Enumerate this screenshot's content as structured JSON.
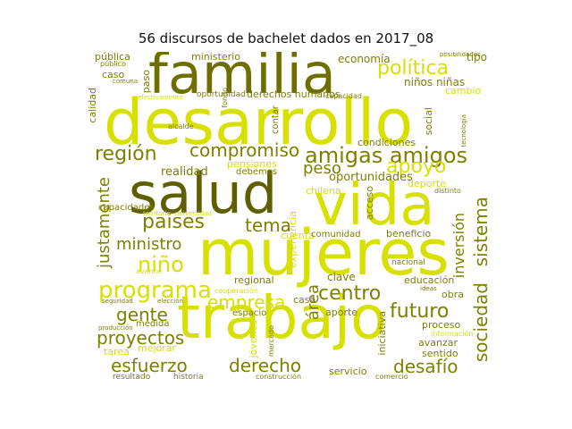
{
  "title": "56 discursos de bachelet dados en 2017_08",
  "palette": {
    "olive": "#7f7f00",
    "yellow": "#d8e000",
    "dark": "#5f5f00"
  },
  "words": {
    "familia": "familia",
    "desarrollo": "desarrollo",
    "salud": "salud",
    "vida": "vida",
    "mujeres": "mujeres",
    "trabajo": "trabajo",
    "politica": "política",
    "region": "región",
    "compromiso": "compromiso",
    "amigas_amigos": "amigas amigos",
    "apoyo": "apoyo",
    "paises": "países",
    "tema": "tema",
    "ministro": "ministro",
    "nino": "niño",
    "programa": "programa",
    "gente": "gente",
    "empresa": "empresa",
    "proyectos": "proyectos",
    "esfuerzo": "esfuerzo",
    "derecho": "derecho",
    "centro": "centro",
    "futuro": "futuro",
    "desafio": "desafío",
    "sociedad": "sociedad",
    "sistema": "sistema",
    "inversion": "inversión",
    "justamente": "justamente",
    "area": "área",
    "peso": "peso",
    "oportunidades": "oportunidades",
    "economia": "economía",
    "ministerio": "ministerio",
    "publica": "pública",
    "derechos_humanos": "derechos humanos",
    "ninos_ninas": "niños niñas",
    "cambio": "cambio",
    "condiciones": "condiciones",
    "pensiones": "pensiones",
    "realidad": "realidad",
    "debemos": "debemos",
    "comunidad": "comunidad",
    "beneficio": "beneficio",
    "educacion": "educación",
    "clave": "clave",
    "regional": "regional",
    "casa": "casa",
    "espacio": "espacio",
    "aporte": "aporte",
    "proceso": "proceso",
    "avanzar": "avanzar",
    "sentido": "sentido",
    "iniciativa": "iniciativa",
    "servicio": "servicio",
    "obra": "obra",
    "nacional": "nacional",
    "medida": "medida",
    "tarea": "tarea",
    "mejorar": "mejorar",
    "jovenes": "jóvenes",
    "capacidades": "capacidades",
    "tipo": "tipo",
    "caso": "caso",
    "calidad": "calidad",
    "social": "social",
    "deporte": "deporte",
    "acceso": "acceso",
    "cuenta": "cuenta",
    "experiencia": "experiencia",
    "chilena": "chilena",
    "paso": "paso",
    "capacidad": "capacidad",
    "oportunidad": "oportunidad",
    "mundo": "mundo",
    "contar": "contar",
    "fondo": "fondo",
    "alcalde": "alcalde",
    "cooperacion": "cooperación",
    "construccion": "construcción",
    "informacion": "información",
    "posibilidades": "posibilidades",
    "tecnologia": "tecnología",
    "distinto": "distinto",
    "seguridad": "seguridad",
    "produccion": "producción",
    "mercado": "mercado",
    "continuar": "continuar",
    "posible": "posible",
    "resultado": "resultado",
    "historia": "historia",
    "especialmente": "especialmente",
    "creacion": "creación",
    "respeto": "respeto",
    "comercio": "comercio",
    "ideas": "ideas",
    "inicio": "inicio",
    "largo": "largo",
    "mayor": "mayor",
    "mayores": "mayores",
    "efectivamente": "efectivamente",
    "comuna": "comuna",
    "publico": "público",
    "tiempo": "tiempo",
    "pension": "pensión",
    "territorio": "territorio",
    "universidad": "universidad",
    "recursos": "recursos",
    "eleccion": "elección",
    "avance": "avance",
    "proteccion": "protección",
    "nuevas": "nuevas",
    "ciudad": "ciudad",
    "negocio": "negocio",
    "juntos": "juntos",
    "sector": "sector",
    "buena": "buena",
    "medio": "medio",
    "atencion": "atención",
    "desafios": "desafíos",
    "mirada": "mirada",
    "falta": "falta",
    "calle": "calle"
  }
}
